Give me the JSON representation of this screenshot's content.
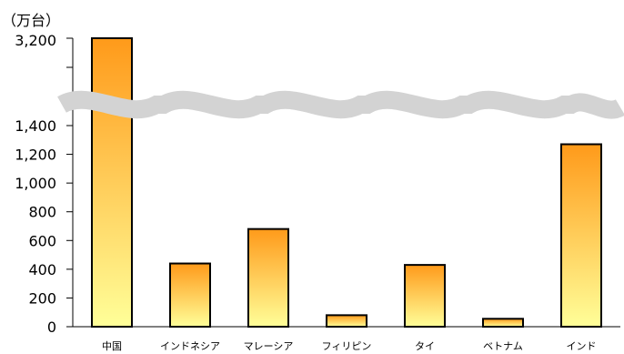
{
  "chart_data": {
    "type": "bar",
    "unit_label": "（万台）",
    "categories": [
      "中国",
      "インドネシア",
      "マレーシア",
      "フィリピン",
      "タイ",
      "ベトナム",
      "インド"
    ],
    "values": [
      3200,
      440,
      680,
      80,
      430,
      55,
      1270
    ],
    "y_ticks_lower": [
      "0",
      "200",
      "400",
      "600",
      "800",
      "1,000",
      "1,200",
      "1,400"
    ],
    "y_tick_upper": "3,200",
    "ylim": [
      0,
      3200
    ],
    "axis_break": true,
    "grid": false,
    "legend": "none",
    "colors": {
      "bar_top": "#ff9a1a",
      "bar_bottom": "#ffff99",
      "bar_edge": "#000000",
      "break_band": "#d3d3d3"
    }
  }
}
